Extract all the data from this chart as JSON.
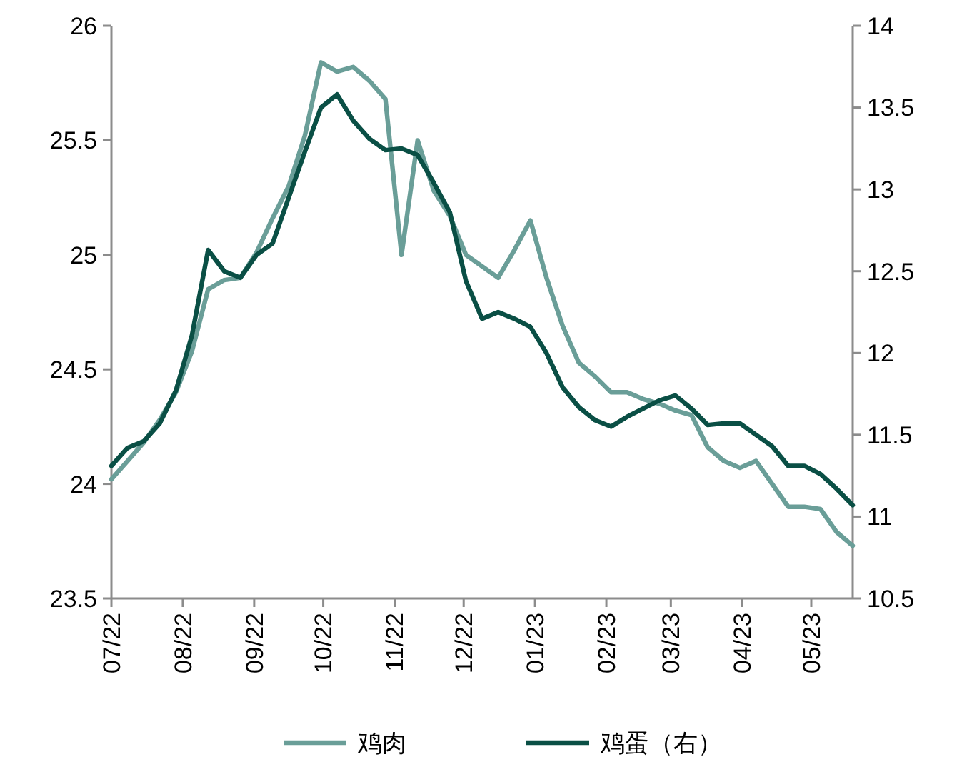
{
  "chart_data": {
    "type": "line",
    "x": [
      "2022-07-01",
      "2022-07-08",
      "2022-07-15",
      "2022-07-22",
      "2022-07-29",
      "2022-08-05",
      "2022-08-12",
      "2022-08-19",
      "2022-08-26",
      "2022-09-02",
      "2022-09-09",
      "2022-09-16",
      "2022-09-23",
      "2022-09-30",
      "2022-10-07",
      "2022-10-14",
      "2022-10-21",
      "2022-10-28",
      "2022-11-04",
      "2022-11-11",
      "2022-11-18",
      "2022-11-25",
      "2022-12-02",
      "2022-12-09",
      "2022-12-16",
      "2022-12-23",
      "2022-12-30",
      "2023-01-06",
      "2023-01-13",
      "2023-01-20",
      "2023-01-27",
      "2023-02-03",
      "2023-02-10",
      "2023-02-17",
      "2023-02-24",
      "2023-03-03",
      "2023-03-10",
      "2023-03-17",
      "2023-03-24",
      "2023-03-31",
      "2023-04-07",
      "2023-04-14",
      "2023-04-21",
      "2023-04-28",
      "2023-05-05",
      "2023-05-12",
      "2023-05-19"
    ],
    "series": [
      {
        "name": "鸡肉",
        "color": "#6a9e98",
        "values": [
          24.02,
          24.1,
          24.18,
          24.28,
          24.4,
          24.58,
          24.85,
          24.89,
          24.9,
          25.01,
          25.16,
          25.3,
          25.52,
          25.84,
          25.8,
          25.82,
          25.76,
          25.68,
          25.0,
          25.5,
          25.28,
          25.17,
          25.0,
          24.95,
          24.9,
          25.02,
          25.15,
          24.9,
          24.69,
          24.53,
          24.47,
          24.4,
          24.4,
          24.37,
          24.35,
          24.32,
          24.3,
          24.16,
          24.1,
          24.07,
          24.1,
          24.0,
          23.9,
          23.9,
          23.89,
          23.79,
          23.73
        ]
      },
      {
        "name": "鸡蛋（右）",
        "color": "#0a4f45",
        "axis": "y2",
        "values": [
          11.31,
          11.42,
          11.46,
          11.57,
          11.77,
          12.11,
          12.63,
          12.5,
          12.46,
          12.6,
          12.67,
          12.95,
          13.23,
          13.5,
          13.58,
          13.42,
          13.31,
          13.24,
          13.25,
          13.21,
          13.04,
          12.86,
          12.44,
          12.21,
          12.25,
          12.21,
          12.16,
          12.0,
          11.79,
          11.67,
          11.59,
          11.55,
          11.61,
          11.66,
          11.71,
          11.74,
          11.66,
          11.56,
          11.57,
          11.57,
          11.5,
          11.43,
          11.31,
          11.31,
          11.26,
          11.17,
          11.07
        ]
      }
    ],
    "xlim": [
      "2022-07-01",
      "2023-05-19"
    ],
    "xticks": [
      {
        "value": "2022-07-01",
        "label": "07/22"
      },
      {
        "value": "2022-08-01",
        "label": "08/22"
      },
      {
        "value": "2022-09-01",
        "label": "09/22"
      },
      {
        "value": "2022-10-01",
        "label": "10/22"
      },
      {
        "value": "2022-11-01",
        "label": "11/22"
      },
      {
        "value": "2022-12-01",
        "label": "12/22"
      },
      {
        "value": "2023-01-01",
        "label": "01/23"
      },
      {
        "value": "2023-02-01",
        "label": "02/23"
      },
      {
        "value": "2023-03-01",
        "label": "03/23"
      },
      {
        "value": "2023-04-01",
        "label": "04/23"
      },
      {
        "value": "2023-05-01",
        "label": "05/23"
      }
    ],
    "ylim": [
      23.5,
      26
    ],
    "yticks": [
      23.5,
      24,
      24.5,
      25,
      25.5,
      26
    ],
    "y2lim": [
      10.5,
      14
    ],
    "y2ticks": [
      10.5,
      11,
      11.5,
      12,
      12.5,
      13,
      13.5,
      14
    ],
    "legend": "bottom",
    "grid": false,
    "marker": "none",
    "line_style": "solid"
  }
}
